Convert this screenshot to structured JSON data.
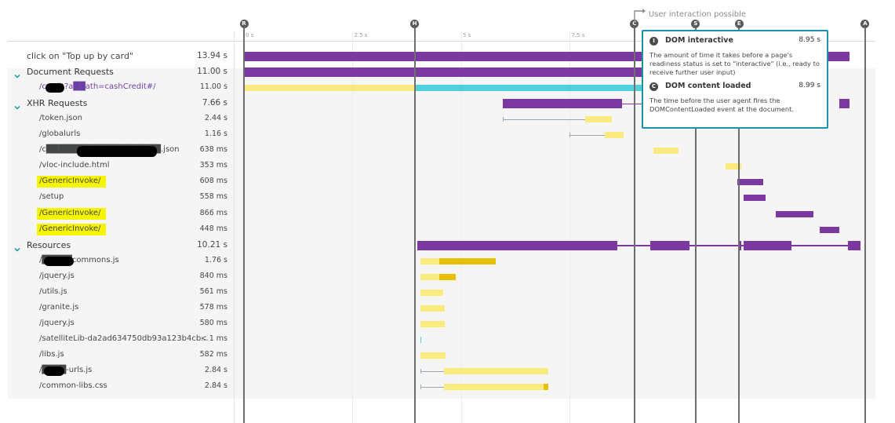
{
  "timeline": {
    "max_seconds": 14.5,
    "ticks": [
      "0 s",
      "2.5 s",
      "5 s",
      "7.5 s"
    ],
    "tick_values": [
      0,
      2.5,
      5,
      7.5
    ],
    "user_interaction_label": "User interaction possible",
    "markers": [
      {
        "letter": "R",
        "seconds": 0
      },
      {
        "letter": "H",
        "seconds": 3.93
      },
      {
        "letter": "C",
        "seconds": 8.99
      },
      {
        "letter": "S",
        "seconds": 10.4
      },
      {
        "letter": "E",
        "seconds": 11.4
      },
      {
        "letter": "A",
        "seconds": 14.3
      }
    ]
  },
  "rows": [
    {
      "label": "click on \"Top up by card\"",
      "duration": "13.94 s",
      "kind": "top",
      "bars": [
        {
          "start": 0,
          "end": 13.94,
          "color": "#7a38a0"
        }
      ]
    },
    {
      "label": "Document Requests",
      "duration": "11.00 s",
      "kind": "group",
      "expanded": true,
      "bars": [
        {
          "start": 0,
          "end": 11.0,
          "color": "#7a38a0"
        }
      ]
    },
    {
      "label": "/credit?a██ath=cashCredit#/",
      "duration": "11.00 s",
      "kind": "link",
      "bars": [
        {
          "start": 0,
          "end": 3.93,
          "color": "#fbea7d"
        },
        {
          "start": 3.93,
          "end": 11.0,
          "color": "#4fd0da"
        }
      ]
    },
    {
      "label": "XHR Requests",
      "duration": "7.66 s",
      "kind": "group",
      "expanded": true,
      "bars": [
        {
          "start": 5.96,
          "end": 8.7,
          "color": "#7a38a0"
        },
        {
          "start": 13.7,
          "end": 13.94,
          "color": "#7a38a0"
        }
      ],
      "connector": [
        8.7,
        9.5
      ]
    },
    {
      "label": "/token.json",
      "duration": "2.44 s",
      "kind": "item",
      "bars": [
        {
          "start": 7.86,
          "end": 8.46,
          "color": "#fbea7d"
        }
      ],
      "whisker": [
        5.96,
        7.86
      ]
    },
    {
      "label": "/globalurls",
      "duration": "1.16 s",
      "kind": "item",
      "bars": [
        {
          "start": 8.3,
          "end": 8.74,
          "color": "#fbea7d"
        }
      ],
      "whisker": [
        7.5,
        8.3
      ]
    },
    {
      "label": "/c███████████████████.json",
      "duration": "638 ms",
      "kind": "item",
      "bars": [
        {
          "start": 9.42,
          "end": 10.01,
          "color": "#fbea7d"
        }
      ]
    },
    {
      "label": "/vloc-include.html",
      "duration": "353 ms",
      "kind": "item",
      "bars": [
        {
          "start": 11.09,
          "end": 11.44,
          "color": "#fbea7d"
        }
      ]
    },
    {
      "label": "/GenericInvoke/",
      "duration": "608 ms",
      "kind": "item",
      "highlight": true,
      "bars": [
        {
          "start": 11.36,
          "end": 11.96,
          "color": "#7a38a0"
        }
      ]
    },
    {
      "label": "/setup",
      "duration": "558 ms",
      "kind": "item",
      "bars": [
        {
          "start": 11.5,
          "end": 12.0,
          "color": "#7a38a0"
        }
      ]
    },
    {
      "label": "/GenericInvoke/",
      "duration": "866 ms",
      "kind": "item",
      "highlight": true,
      "bars": [
        {
          "start": 12.24,
          "end": 13.11,
          "color": "#7a38a0"
        }
      ]
    },
    {
      "label": "/GenericInvoke/",
      "duration": "448 ms",
      "kind": "item",
      "highlight": true,
      "bars": [
        {
          "start": 13.26,
          "end": 13.7,
          "color": "#7a38a0"
        }
      ]
    },
    {
      "label": "Resources",
      "duration": "10.21 s",
      "kind": "group",
      "expanded": true,
      "bars": [
        {
          "start": 3.99,
          "end": 8.6,
          "color": "#7a38a0"
        },
        {
          "start": 9.36,
          "end": 10.25,
          "color": "#7a38a0"
        },
        {
          "start": 11.4,
          "end": 11.44,
          "color": "#7a38a0"
        },
        {
          "start": 11.5,
          "end": 12.6,
          "color": "#7a38a0"
        },
        {
          "start": 13.9,
          "end": 14.2,
          "color": "#7a38a0"
        }
      ],
      "connector": [
        8.6,
        13.9
      ]
    },
    {
      "label": "/█████commons.js",
      "duration": "1.76 s",
      "kind": "item",
      "bars": [
        {
          "start": 4.06,
          "end": 4.5,
          "color": "#fbea7d"
        },
        {
          "start": 4.5,
          "end": 5.8,
          "color": "#e5bf00"
        }
      ]
    },
    {
      "label": "/jquery.js",
      "duration": "840 ms",
      "kind": "item",
      "bars": [
        {
          "start": 4.06,
          "end": 4.5,
          "color": "#fbea7d"
        },
        {
          "start": 4.5,
          "end": 4.87,
          "color": "#e5bf00"
        }
      ]
    },
    {
      "label": "/utils.js",
      "duration": "561 ms",
      "kind": "item",
      "bars": [
        {
          "start": 4.06,
          "end": 4.58,
          "color": "#fbea7d"
        }
      ]
    },
    {
      "label": "/granite.js",
      "duration": "578 ms",
      "kind": "item",
      "bars": [
        {
          "start": 4.06,
          "end": 4.62,
          "color": "#fbea7d"
        }
      ]
    },
    {
      "label": "/jquery.js",
      "duration": "580 ms",
      "kind": "item",
      "bars": [
        {
          "start": 4.06,
          "end": 4.62,
          "color": "#fbea7d"
        }
      ]
    },
    {
      "label": "/satelliteLib-da2ad634750db93a123b4cb...",
      "duration": "< 1 ms",
      "kind": "item",
      "bars": [
        {
          "start": 4.06,
          "end": 4.08,
          "color": "#4fd0da"
        }
      ]
    },
    {
      "label": "/libs.js",
      "duration": "582 ms",
      "kind": "item",
      "bars": [
        {
          "start": 4.06,
          "end": 4.64,
          "color": "#fbea7d"
        }
      ]
    },
    {
      "label": "/████-urls.js",
      "duration": "2.84 s",
      "kind": "item",
      "bars": [
        {
          "start": 4.6,
          "end": 7.0,
          "color": "#fbea7d"
        }
      ],
      "whisker": [
        4.06,
        4.6
      ]
    },
    {
      "label": "/common-libs.css",
      "duration": "2.84 s",
      "kind": "item",
      "bars": [
        {
          "start": 4.6,
          "end": 6.9,
          "color": "#fbea7d"
        },
        {
          "start": 6.9,
          "end": 7.0,
          "color": "#e5bf00"
        }
      ],
      "whisker": [
        4.06,
        4.6
      ]
    }
  ],
  "tooltip": {
    "items": [
      {
        "icon_letter": "I",
        "title": "DOM interactive",
        "value": "8.95 s",
        "desc": "The amount of time it takes before a page's readiness status is set to \"interactive\" (i.e., ready to receive further user input)"
      },
      {
        "icon_letter": "C",
        "title": "DOM content loaded",
        "value": "8.99 s",
        "desc": "The time before the user agent fires the DOMContentLoaded event at the document."
      }
    ]
  },
  "colors": {
    "request_purple": "#7a38a0",
    "waiting_yellow": "#fbea7d",
    "download_gold": "#e5bf00",
    "content_cyan": "#4fd0da",
    "tooltip_border": "#1a93a6",
    "highlight_yellow": "#f6f500",
    "group_bg": "#f5f5f5"
  }
}
